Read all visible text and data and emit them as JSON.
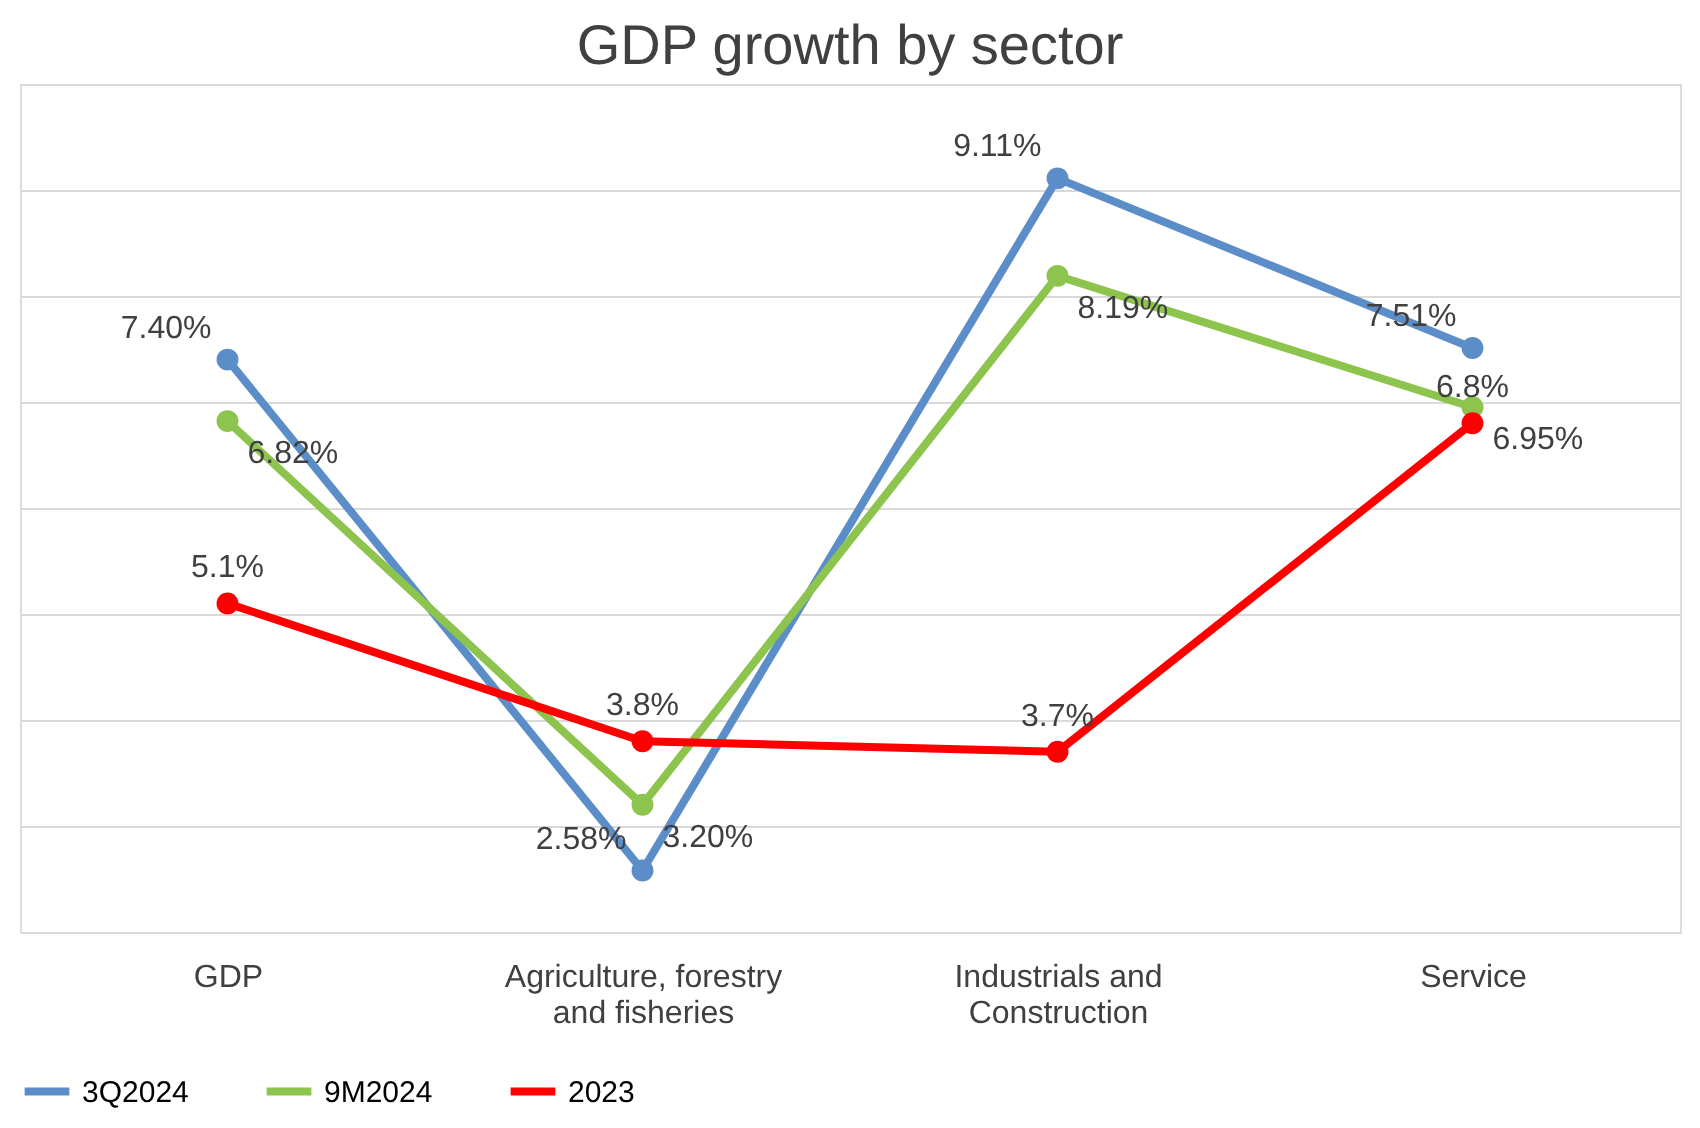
{
  "chart_data": {
    "type": "line",
    "title": "GDP growth by sector",
    "categories": [
      "GDP",
      "Agriculture, forestry and fisheries",
      "Industrials and Construction",
      "Service"
    ],
    "series": [
      {
        "name": "3Q2024",
        "color": "#5b8ec9",
        "values": [
          7.4,
          2.58,
          9.11,
          7.51
        ],
        "value_labels": [
          "7.40%",
          "2.58%",
          "9.11%",
          "7.51%"
        ]
      },
      {
        "name": "9M2024",
        "color": "#8dc44e",
        "values": [
          6.82,
          3.2,
          8.19,
          6.95
        ],
        "value_labels": [
          "6.82%",
          "3.20%",
          "8.19%",
          "6.95%"
        ]
      },
      {
        "name": "2023",
        "color": "#ff0000",
        "values": [
          5.1,
          3.8,
          3.7,
          6.8
        ],
        "value_labels": [
          "5.1%",
          "3.8%",
          "3.7%",
          "6.8%"
        ]
      }
    ],
    "ylim": [
      2,
      10
    ],
    "yticks": [
      {
        "value": 2,
        "label": null
      },
      {
        "value": 3,
        "label": null
      },
      {
        "value": 4,
        "label": null
      },
      {
        "value": 5,
        "label": null
      },
      {
        "value": 6,
        "label": null
      },
      {
        "value": 7,
        "label": null
      },
      {
        "value": 8,
        "label": null
      },
      {
        "value": 9,
        "label": null
      },
      {
        "value": 10,
        "label": null
      }
    ],
    "tick_labels": "x",
    "grid": "y",
    "legend": "bottom",
    "marker": "circle",
    "line_style": "solid"
  }
}
